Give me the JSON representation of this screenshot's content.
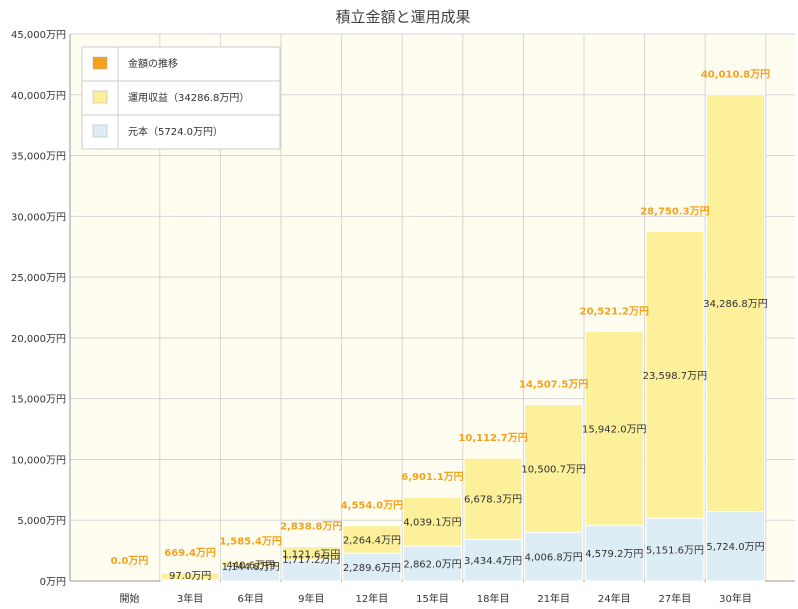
{
  "chart_data": {
    "type": "bar",
    "stacked": true,
    "title": "積立金額と運用成果",
    "categories": [
      "開始",
      "3年目",
      "6年目",
      "9年目",
      "12年目",
      "15年目",
      "18年目",
      "21年目",
      "24年目",
      "27年目",
      "30年目"
    ],
    "series": [
      {
        "name": "元本（5724.0万円）",
        "color": "#dcedf5",
        "values": [
          0,
          97.0,
          1144.8,
          1717.2,
          2289.6,
          2862.0,
          3434.4,
          4006.8,
          4579.2,
          5151.6,
          5724.0
        ],
        "labels": [
          "",
          "97.0万円",
          "1,144.8万円",
          "1,717.2万円",
          "2,289.6万円",
          "2,862.0万円",
          "3,434.4万円",
          "4,006.8万円",
          "4,579.2万円",
          "5,151.6万円",
          "5,724.0万円"
        ]
      },
      {
        "name": "運用収益（34286.8万円）",
        "color": "#fcf09a",
        "values": [
          0,
          572.4,
          440.6,
          1121.6,
          2264.4,
          4039.1,
          6678.3,
          10500.7,
          15942.0,
          23598.7,
          34286.8
        ],
        "labels": [
          "",
          "",
          "440.6万円",
          "1,121.6万円",
          "2,264.4万円",
          "4,039.1万円",
          "6,678.3万円",
          "10,500.7万円",
          "15,942.0万円",
          "23,598.7万円",
          "34,286.8万円"
        ]
      }
    ],
    "totals": {
      "name": "金額の推移",
      "color": "#f4a21b",
      "values": [
        0.0,
        669.4,
        1585.4,
        2838.8,
        4554.0,
        6901.1,
        10112.7,
        14507.5,
        20521.2,
        28750.3,
        40010.8
      ],
      "labels": [
        "0.0万円",
        "669.4万円",
        "1,585.4万円",
        "2,838.8万円",
        "4,554.0万円",
        "6,901.1万円",
        "10,112.7万円",
        "14,507.5万円",
        "20,521.2万円",
        "28,750.3万円",
        "40,010.8万円"
      ]
    },
    "ylim": [
      0,
      45000
    ],
    "yticks": [
      0,
      5000,
      10000,
      15000,
      20000,
      25000,
      30000,
      35000,
      40000,
      45000
    ],
    "ytick_labels": [
      "0万円",
      "5,000万円",
      "10,000万円",
      "15,000万円",
      "20,000万円",
      "25,000万円",
      "30,000万円",
      "35,000万円",
      "40,000万円",
      "45,000万円"
    ],
    "grid": true,
    "legend_position": "top-left",
    "legend": [
      {
        "label": "金額の推移",
        "color": "#f4a21b"
      },
      {
        "label": "運用収益（34286.8万円）",
        "color": "#fcf09a"
      },
      {
        "label": "元本（5724.0万円）",
        "color": "#dcedf5"
      }
    ],
    "colors": {
      "plot_bg": "#fffcf0",
      "grid": "#d6d6d6",
      "axis": "#999999",
      "bar_border": "#ffffff"
    }
  }
}
